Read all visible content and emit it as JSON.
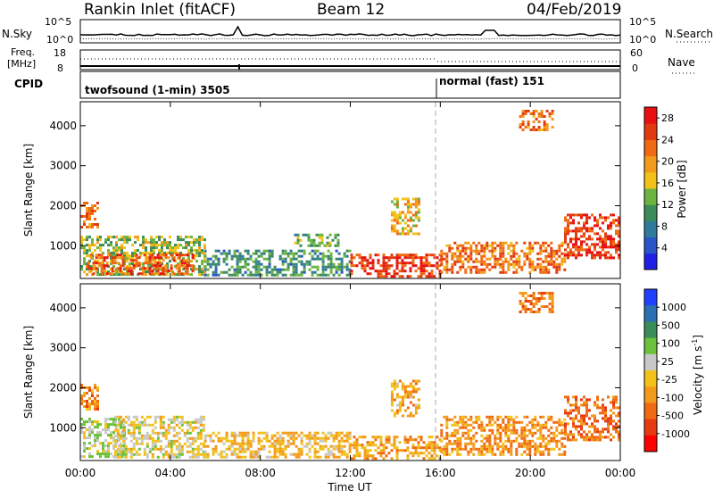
{
  "header": {
    "station": "Rankin Inlet (fitACF)",
    "beam": "Beam 12",
    "date": "04/Feb/2019"
  },
  "noise_panel": {
    "left_label": "N.Sky",
    "right_label": "N.Search",
    "left_ticks": [
      "10^5",
      "10^0"
    ],
    "right_ticks": [
      "10^5",
      "10^0"
    ]
  },
  "freq_panel": {
    "left_label_top": "Freq.",
    "left_label_bottom": "[MHz]",
    "left_ticks": [
      "18",
      "8"
    ],
    "right_label": "Nave",
    "right_ticks": [
      "60",
      "0"
    ]
  },
  "cpid_panel": {
    "label": "CPID",
    "modes": [
      {
        "name": "twofsound (1-min) 3505",
        "start_hour": 0,
        "end_hour": 16
      },
      {
        "name": "normal (fast) 151",
        "start_hour": 16,
        "end_hour": 24
      }
    ]
  },
  "colors": {
    "power_scale": [
      "#1f1fe6",
      "#2855c8",
      "#2f7a9a",
      "#3b8c5a",
      "#6cb33f",
      "#f2c21a",
      "#f39a1a",
      "#ef6a12",
      "#e23a10",
      "#e81010"
    ],
    "velocity_scale": [
      "#2040ff",
      "#2a6fb3",
      "#3a8c5a",
      "#6cc23a",
      "#c8c8c8",
      "#f2c21a",
      "#f39a1a",
      "#ef6a12",
      "#e83a10",
      "#ff0000"
    ]
  },
  "chart_data": [
    {
      "type": "heatmap",
      "title": "Power",
      "xlabel": "Time UT",
      "ylabel": "Slant Range [km]",
      "x_ticks": [
        "00:00",
        "04:00",
        "08:00",
        "12:00",
        "16:00",
        "20:00",
        "00:00"
      ],
      "y_ticks": [
        "1000",
        "2000",
        "3000",
        "4000"
      ],
      "xlim": [
        0,
        24
      ],
      "ylim": [
        180,
        4600
      ],
      "colorbar": {
        "label": "Power [dB]",
        "ticks": [
          "4",
          "8",
          "12",
          "16",
          "20",
          "24",
          "28"
        ],
        "range": [
          0,
          30
        ]
      },
      "regions": [
        {
          "t0": 0.0,
          "t1": 0.8,
          "r0": 1450,
          "r1": 2100,
          "value": 22
        },
        {
          "t0": 0.0,
          "t1": 5.5,
          "r0": 250,
          "r1": 1250,
          "value": 14
        },
        {
          "t0": 0.3,
          "t1": 5.0,
          "r0": 300,
          "r1": 800,
          "value": 24
        },
        {
          "t0": 5.5,
          "t1": 12.0,
          "r0": 250,
          "r1": 900,
          "value": 10
        },
        {
          "t0": 9.5,
          "t1": 11.5,
          "r0": 1000,
          "r1": 1300,
          "value": 12
        },
        {
          "t0": 12.0,
          "t1": 16.0,
          "r0": 250,
          "r1": 800,
          "value": 26
        },
        {
          "t0": 13.8,
          "t1": 15.0,
          "r0": 1300,
          "r1": 2200,
          "value": 18
        },
        {
          "t0": 16.0,
          "t1": 21.5,
          "r0": 300,
          "r1": 1100,
          "value": 22
        },
        {
          "t0": 21.5,
          "t1": 23.9,
          "r0": 700,
          "r1": 1800,
          "value": 26
        },
        {
          "t0": 19.5,
          "t1": 21.0,
          "r0": 3900,
          "r1": 4400,
          "value": 22
        }
      ]
    },
    {
      "type": "heatmap",
      "title": "Velocity",
      "xlabel": "Time UT",
      "ylabel": "Slant Range [km]",
      "x_ticks": [
        "00:00",
        "04:00",
        "08:00",
        "12:00",
        "16:00",
        "20:00",
        "00:00"
      ],
      "y_ticks": [
        "1000",
        "2000",
        "3000",
        "4000"
      ],
      "xlim": [
        0,
        24
      ],
      "ylim": [
        180,
        4600
      ],
      "colorbar": {
        "label": "Velocity [m s^-1]",
        "ticks": [
          "1000",
          "500",
          "100",
          "25",
          "-25",
          "-100",
          "-500",
          "-1000"
        ],
        "range": [
          -1000,
          1000
        ]
      },
      "regions": [
        {
          "t0": 0.0,
          "t1": 0.8,
          "r0": 1450,
          "r1": 2100,
          "value": -400
        },
        {
          "t0": 0.0,
          "t1": 2.0,
          "r0": 250,
          "r1": 1250,
          "value": 150
        },
        {
          "t0": 1.5,
          "t1": 5.5,
          "r0": 250,
          "r1": 1300,
          "value": 0
        },
        {
          "t0": 5.5,
          "t1": 12.0,
          "r0": 250,
          "r1": 900,
          "value": -150
        },
        {
          "t0": 12.0,
          "t1": 16.0,
          "r0": 250,
          "r1": 800,
          "value": -300
        },
        {
          "t0": 13.8,
          "t1": 15.0,
          "r0": 1300,
          "r1": 2200,
          "value": -200
        },
        {
          "t0": 16.0,
          "t1": 21.5,
          "r0": 300,
          "r1": 1300,
          "value": -350
        },
        {
          "t0": 21.5,
          "t1": 23.9,
          "r0": 700,
          "r1": 1800,
          "value": -500
        },
        {
          "t0": 19.5,
          "t1": 21.0,
          "r0": 3900,
          "r1": 4400,
          "value": -450
        }
      ]
    }
  ]
}
